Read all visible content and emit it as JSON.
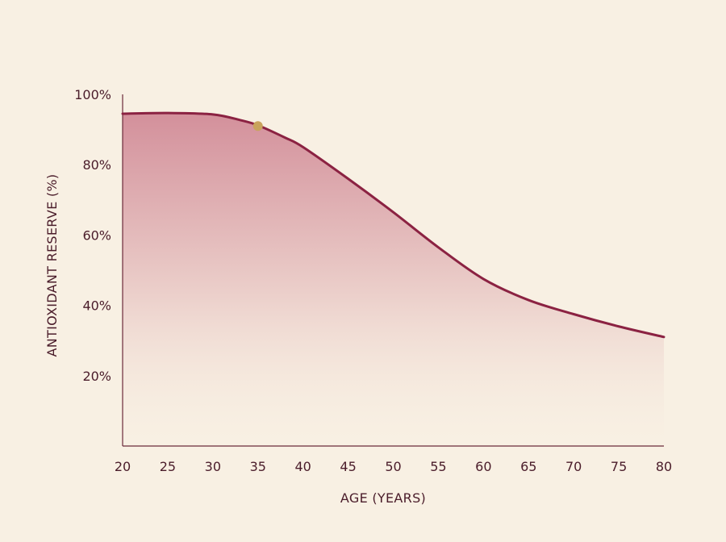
{
  "chart_data": {
    "type": "area",
    "title": "",
    "xlabel": "AGE (YEARS)",
    "ylabel": "ANTIOXIDANT RESERVE (%)",
    "xlim": [
      20,
      80
    ],
    "ylim": [
      0,
      100
    ],
    "x_ticks": [
      20,
      25,
      30,
      35,
      40,
      45,
      50,
      55,
      60,
      65,
      70,
      75,
      80
    ],
    "y_ticks": [
      20,
      40,
      60,
      80,
      100
    ],
    "y_tick_labels": [
      "20%",
      "40%",
      "60%",
      "80%",
      "100%"
    ],
    "grid": false,
    "legend": "none",
    "series": [
      {
        "x": [
          20,
          25,
          30,
          33,
          35,
          38,
          40,
          45,
          50,
          55,
          60,
          65,
          70,
          75,
          80
        ],
        "y": [
          94.5,
          94.7,
          94.3,
          92.7,
          91.2,
          87.7,
          85,
          76,
          66.5,
          56.5,
          47.5,
          41.5,
          37.5,
          34,
          31
        ]
      }
    ],
    "highlight_point": {
      "x": 35,
      "y": 91
    },
    "colors": {
      "line": "#8b2242",
      "fill_top": "#cf8593",
      "fill_bottom": "#f8f0e3",
      "axis": "#6b2a3a",
      "text": "#4a1c2a",
      "marker": "#c9a35c",
      "background": "#f8f0e3"
    }
  }
}
